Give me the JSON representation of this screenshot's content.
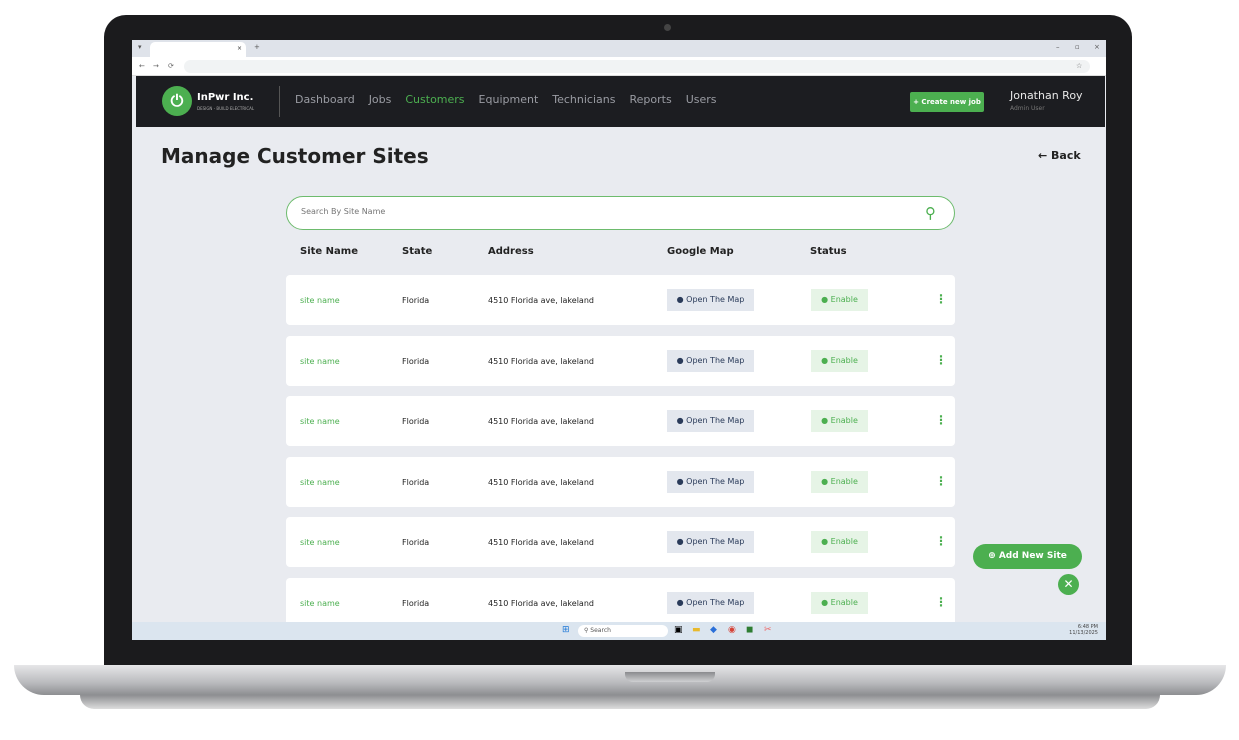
{
  "browser": {
    "tab_close": "×",
    "new_tab": "+",
    "window_controls": [
      "–",
      "▫",
      "×"
    ],
    "nav_icons": [
      "←",
      "→",
      "⟳"
    ],
    "star": "☆",
    "tab_menu": "▾"
  },
  "app": {
    "brand": "InPwr Inc.",
    "tagline": "DESIGN - BUILD ELECTRICAL",
    "logo_icon": "⏻",
    "nav": [
      "Dashboard",
      "Jobs",
      "Customers",
      "Equipment",
      "Technicians",
      "Reports",
      "Users"
    ],
    "active_nav": "Customers",
    "create_job": "+ Create new job",
    "user_name": "Jonathan Roy",
    "user_role": "Admin User",
    "accent": "#4caf50"
  },
  "page": {
    "title": "Manage Customer Sites",
    "back": "← Back",
    "search_placeholder": "Search By Site Name",
    "search_icon": "⚲",
    "columns": [
      "Site Name",
      "State",
      "Address",
      "Google Map",
      "Status"
    ],
    "rows": [
      {
        "site": "site name",
        "state": "Florida",
        "address": "4510 Florida ave, lakeland",
        "map": "● Open The Map",
        "status": "● Enable"
      },
      {
        "site": "site name",
        "state": "Florida",
        "address": "4510 Florida ave, lakeland",
        "map": "● Open The Map",
        "status": "● Enable"
      },
      {
        "site": "site name",
        "state": "Florida",
        "address": "4510 Florida ave, lakeland",
        "map": "● Open The Map",
        "status": "● Enable"
      },
      {
        "site": "site name",
        "state": "Florida",
        "address": "4510 Florida ave, lakeland",
        "map": "● Open The Map",
        "status": "● Enable"
      },
      {
        "site": "site name",
        "state": "Florida",
        "address": "4510 Florida ave, lakeland",
        "map": "● Open The Map",
        "status": "● Enable"
      },
      {
        "site": "site name",
        "state": "Florida",
        "address": "4510 Florida ave, lakeland",
        "map": "● Open The Map",
        "status": "● Enable"
      }
    ],
    "more_icon": "⋮",
    "add_site": "⊕ Add New Site",
    "close": "✕"
  },
  "taskbar": {
    "search": "⚲ Search",
    "time": "6:48 PM",
    "date": "11/13/2025"
  }
}
